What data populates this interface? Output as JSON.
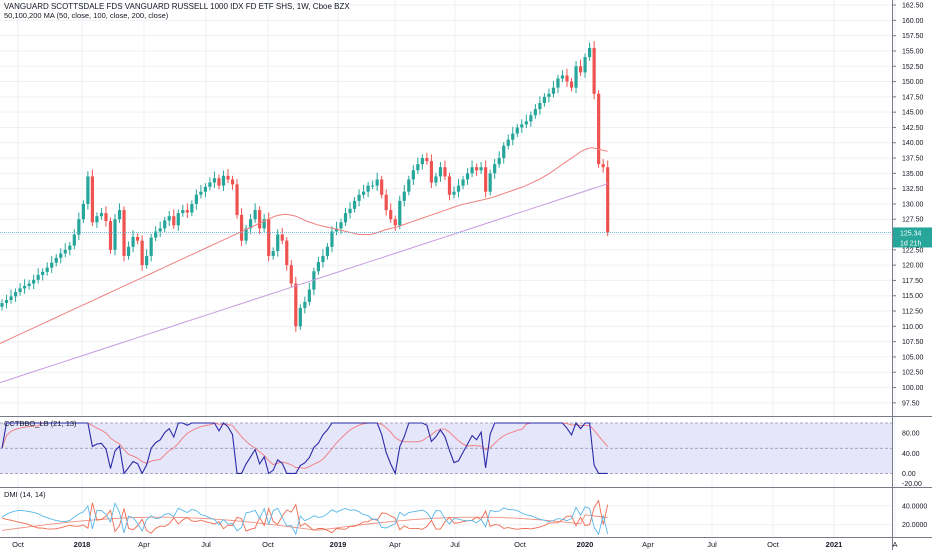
{
  "header": {
    "title": "VANGUARD SCOTTSDALE FDS VANGUARD RUSSELL 1000 IDX FD ETF SHS, 1W, Cboe BZX",
    "ma_legend": "50,100,200 MA (50, close, 100, close, 200, close)"
  },
  "price_axis": {
    "ticks": [
      "97.50",
      "100.00",
      "102.50",
      "105.00",
      "107.50",
      "110.00",
      "112.50",
      "115.00",
      "117.50",
      "120.00",
      "122.50",
      "125.00",
      "127.50",
      "130.00",
      "132.50",
      "135.00",
      "137.50",
      "140.00",
      "142.50",
      "145.00",
      "147.50",
      "150.00",
      "152.50",
      "155.00",
      "157.50",
      "160.00",
      "162.50"
    ],
    "last_price": "125.34",
    "countdown": "1d 21h"
  },
  "cctbbo": {
    "label": "CCTBBO_LB (21, 13)",
    "ticks": [
      "-20.00",
      "0.00",
      "40.00",
      "80.00"
    ]
  },
  "dmi": {
    "label": "DMI (14, 14)",
    "ticks": [
      "20.0000",
      "40.0000"
    ]
  },
  "time_axis": {
    "labels": [
      "Oct",
      "2018",
      "Apr",
      "Jul",
      "Oct",
      "2019",
      "Apr",
      "Jul",
      "Oct",
      "2020",
      "Apr",
      "Jul",
      "Oct",
      "2021",
      "A"
    ]
  },
  "colors": {
    "up": "#26a69a",
    "down": "#ef5350",
    "ma100": "#f08080",
    "ma200": "#c89be0",
    "cct": "#2a2aa8",
    "cct_signal": "#f07a7a",
    "band": "#dcdcfa",
    "dmi_plus": "#5ab8e8",
    "dmi_minus": "#f06a50",
    "adx": "#f09080",
    "price_line": "#5fb3d6"
  },
  "chart_data": {
    "type": "candlestick",
    "title": "VANGUARD SCOTTSDALE FDS VANGUARD RUSSELL 1000 IDX FD ETF SHS, 1W, Cboe BZX",
    "xlabel": "",
    "ylabel": "",
    "ylim": [
      96,
      163
    ],
    "last_price": 125.34,
    "closes": [
      113.8,
      114.3,
      114.9,
      115.6,
      116.2,
      116.6,
      117.0,
      117.6,
      118.4,
      118.9,
      119.6,
      120.4,
      121.2,
      121.9,
      122.5,
      123.2,
      125.0,
      127.5,
      130.0,
      134.5,
      127.0,
      128.0,
      128.5,
      127.2,
      122.5,
      127.5,
      129.0,
      121.5,
      123.0,
      124.6,
      124.0,
      120.0,
      121.5,
      124.5,
      125.5,
      126.0,
      127.3,
      128.0,
      126.5,
      128.5,
      129.0,
      128.6,
      130.0,
      131.5,
      132.0,
      132.8,
      133.5,
      134.2,
      133.0,
      134.6,
      134.0,
      133.2,
      128.2,
      124.0,
      126.0,
      127.5,
      129.0,
      126.0,
      127.5,
      121.5,
      122.3,
      125.0,
      124.0,
      120.0,
      117.0,
      110.0,
      113.0,
      114.0,
      116.0,
      119.0,
      120.5,
      121.5,
      123.0,
      125.5,
      126.0,
      127.0,
      128.5,
      129.2,
      130.5,
      131.5,
      132.0,
      133.0,
      133.0,
      134.0,
      131.5,
      129.0,
      127.5,
      126.5,
      130.5,
      132.0,
      134.0,
      135.5,
      136.5,
      137.5,
      137.0,
      133.5,
      134.5,
      136.0,
      134.5,
      131.5,
      132.0,
      133.0,
      134.0,
      135.0,
      136.0,
      135.5,
      136.0,
      132.0,
      135.0,
      136.5,
      137.5,
      139.5,
      140.5,
      141.5,
      142.5,
      143.0,
      143.5,
      144.5,
      145.5,
      146.5,
      147.5,
      148.0,
      149.0,
      150.5,
      151.0,
      150.0,
      149.0,
      152.5,
      151.5,
      154.0,
      155.5,
      148.0,
      136.5,
      136.0,
      125.34
    ],
    "ma100": [
      107.2,
      107.6,
      108.0,
      108.4,
      108.8,
      109.2,
      109.6,
      110.0,
      110.4,
      110.8,
      111.2,
      111.6,
      112.0,
      112.4,
      112.8,
      113.2,
      113.6,
      114.0,
      114.4,
      114.8,
      115.2,
      115.6,
      116.0,
      116.4,
      116.8,
      117.2,
      117.6,
      118.0,
      118.4,
      118.8,
      119.2,
      119.6,
      120.0,
      120.4,
      120.8,
      121.2,
      121.6,
      122.0,
      122.4,
      122.8,
      123.2,
      123.6,
      124.0,
      124.4,
      124.8,
      125.2,
      125.6,
      126.0,
      126.4,
      126.8,
      127.2,
      127.6,
      128.0,
      128.2,
      128.3,
      128.2,
      128.0,
      127.6,
      127.2,
      126.9,
      126.6,
      126.4,
      126.2,
      126.0,
      125.8,
      125.6,
      125.4,
      125.2,
      125.0,
      125.0,
      125.0,
      125.2,
      125.5,
      125.8,
      126.0,
      126.2,
      126.5,
      126.8,
      127.1,
      127.4,
      127.7,
      128.0,
      128.3,
      128.6,
      128.9,
      129.2,
      129.5,
      129.8,
      130.0,
      130.2,
      130.4,
      130.6,
      130.8,
      131.0,
      131.3,
      131.6,
      131.9,
      132.2,
      132.5,
      132.8,
      133.2,
      133.6,
      134.0,
      134.5,
      135.0,
      135.6,
      136.2,
      136.8,
      137.4,
      138.0,
      138.6,
      139.0,
      139.2,
      139.0,
      138.8,
      138.6
    ],
    "ma200": [
      100.8,
      101.3,
      101.8,
      102.3,
      102.8,
      103.3,
      103.8,
      104.3,
      104.8,
      105.3,
      105.8,
      106.3,
      106.8,
      107.3,
      107.8,
      108.3,
      108.8,
      109.3,
      109.8,
      110.3,
      110.8,
      111.3,
      111.8,
      112.3,
      112.8,
      113.3,
      113.8,
      114.3,
      114.8,
      115.3,
      115.8,
      116.3,
      116.8,
      117.3,
      117.8,
      118.3,
      118.8,
      119.3,
      119.8,
      120.3,
      120.8,
      121.3,
      121.8,
      122.3,
      122.8,
      123.3,
      123.8,
      124.3,
      124.8,
      125.3,
      125.8,
      126.3,
      126.8,
      127.3,
      127.8,
      128.3,
      128.8,
      129.3,
      129.8,
      130.3,
      130.8,
      131.3,
      131.8,
      132.3,
      132.8,
      133.3
    ]
  }
}
